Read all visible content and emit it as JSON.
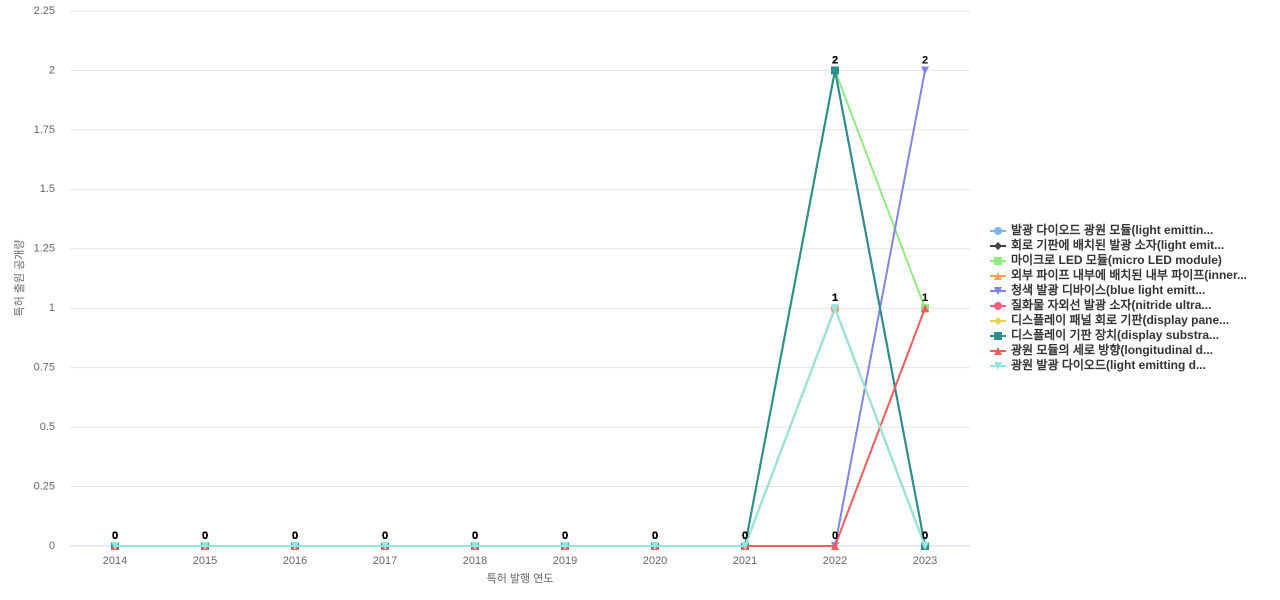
{
  "chart_data": {
    "type": "line",
    "x_label": "특허 발행 연도",
    "y_label": "특허 출원 공개량",
    "categories": [
      "2014",
      "2015",
      "2016",
      "2017",
      "2018",
      "2019",
      "2020",
      "2021",
      "2022",
      "2023"
    ],
    "ylim": [
      0,
      2.25
    ],
    "yticks": [
      0,
      0.25,
      0.5,
      0.75,
      1,
      1.25,
      1.5,
      1.75,
      2,
      2.25
    ],
    "grid": true,
    "legend": "right",
    "series": [
      {
        "name": "발광 다이오드 광원 모듈(light emittin...",
        "color": "#7cb5ec",
        "symbol": "circle",
        "values": [
          0,
          0,
          0,
          0,
          0,
          0,
          0,
          0,
          1,
          0
        ]
      },
      {
        "name": "회로 기판에 배치된 발광 소자(light emit...",
        "color": "#434348",
        "symbol": "diamond",
        "values": [
          0,
          0,
          0,
          0,
          0,
          0,
          0,
          0,
          2,
          0
        ]
      },
      {
        "name": "마이크로 LED 모듈(micro LED module)",
        "color": "#90ed7d",
        "symbol": "square",
        "values": [
          0,
          0,
          0,
          0,
          0,
          0,
          0,
          0,
          2,
          1
        ]
      },
      {
        "name": "외부 파이프 내부에 배치된 내부 파이프(inner...",
        "color": "#f7a35c",
        "symbol": "triangle",
        "values": [
          0,
          0,
          0,
          0,
          0,
          0,
          0,
          0,
          1,
          0
        ]
      },
      {
        "name": "청색 발광 디바이스(blue light emitt...",
        "color": "#8085e9",
        "symbol": "triangle-down",
        "values": [
          0,
          0,
          0,
          0,
          0,
          0,
          0,
          0,
          0,
          2
        ]
      },
      {
        "name": "질화물 자외선 발광 소자(nitride ultra...",
        "color": "#f15c80",
        "symbol": "circle",
        "values": [
          0,
          0,
          0,
          0,
          0,
          0,
          0,
          0,
          1,
          0
        ]
      },
      {
        "name": "디스플레이 패널 회로 기판(display pane...",
        "color": "#e4d354",
        "symbol": "diamond",
        "values": [
          0,
          0,
          0,
          0,
          0,
          0,
          0,
          0,
          1,
          0
        ]
      },
      {
        "name": "디스플레이 기판 장치(display substra...",
        "color": "#2b908f",
        "symbol": "square",
        "values": [
          0,
          0,
          0,
          0,
          0,
          0,
          0,
          0,
          2,
          0
        ]
      },
      {
        "name": "광원 모듈의 세로 방향(longitudinal d...",
        "color": "#f45b5b",
        "symbol": "triangle",
        "values": [
          0,
          0,
          0,
          0,
          0,
          0,
          0,
          0,
          0,
          1
        ]
      },
      {
        "name": "광원 발광 다이오드(light emitting d...",
        "color": "#91e8e1",
        "symbol": "triangle-down",
        "values": [
          0,
          0,
          0,
          0,
          0,
          0,
          0,
          0,
          1,
          0
        ]
      }
    ]
  }
}
